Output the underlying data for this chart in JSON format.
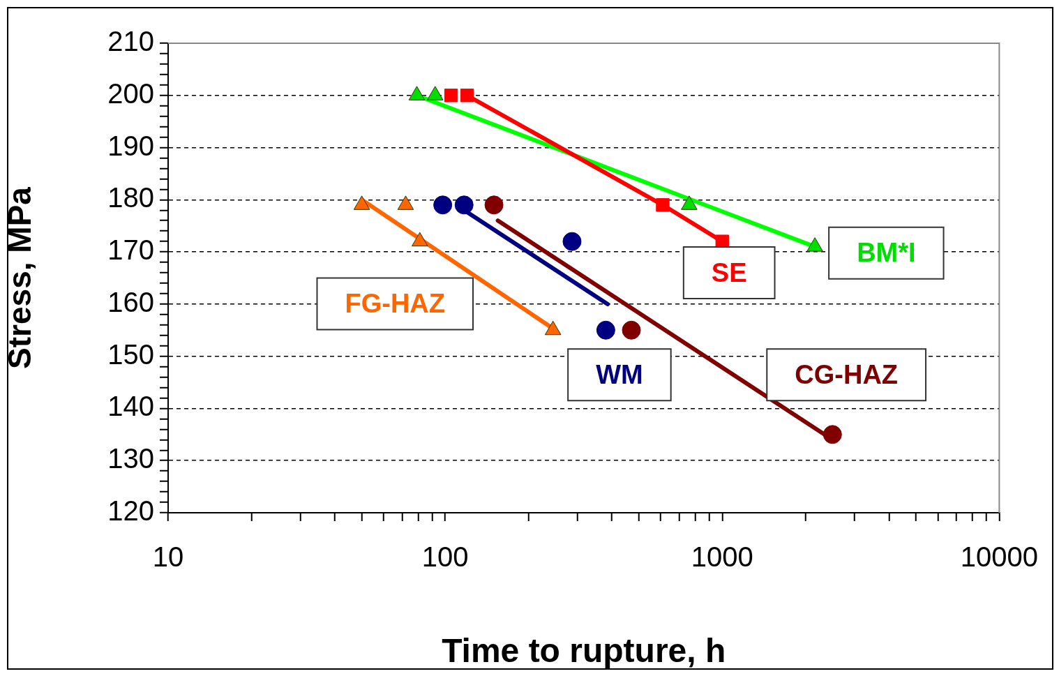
{
  "chart_data": {
    "type": "scatter",
    "xlabel": "Time to rupture, h",
    "ylabel": "Stress, MPa",
    "log": "x",
    "grid": "y",
    "legend": false,
    "xlim": [
      10,
      10000
    ],
    "ylim": [
      120,
      210
    ],
    "xticks": [
      10,
      {
        "value": 20,
        "label": null
      },
      {
        "value": 30,
        "label": null
      },
      {
        "value": 40,
        "label": null
      },
      {
        "value": 50,
        "label": null
      },
      {
        "value": 60,
        "label": null
      },
      {
        "value": 70,
        "label": null
      },
      {
        "value": 80,
        "label": null
      },
      {
        "value": 90,
        "label": null
      },
      100,
      {
        "value": 200,
        "label": null
      },
      {
        "value": 300,
        "label": null
      },
      {
        "value": 400,
        "label": null
      },
      {
        "value": 500,
        "label": null
      },
      {
        "value": 600,
        "label": null
      },
      {
        "value": 700,
        "label": null
      },
      {
        "value": 800,
        "label": null
      },
      {
        "value": 900,
        "label": null
      },
      1000,
      {
        "value": 2000,
        "label": null
      },
      {
        "value": 3000,
        "label": null
      },
      {
        "value": 4000,
        "label": null
      },
      {
        "value": 5000,
        "label": null
      },
      {
        "value": 6000,
        "label": null
      },
      {
        "value": 7000,
        "label": null
      },
      {
        "value": 8000,
        "label": null
      },
      {
        "value": 9000,
        "label": null
      },
      10000
    ],
    "yticks": [
      120,
      {
        "value": 122,
        "label": null
      },
      {
        "value": 124,
        "label": null
      },
      {
        "value": 126,
        "label": null
      },
      {
        "value": 128,
        "label": null
      },
      130,
      {
        "value": 132,
        "label": null
      },
      {
        "value": 134,
        "label": null
      },
      {
        "value": 136,
        "label": null
      },
      {
        "value": 138,
        "label": null
      },
      140,
      {
        "value": 142,
        "label": null
      },
      {
        "value": 144,
        "label": null
      },
      {
        "value": 146,
        "label": null
      },
      {
        "value": 148,
        "label": null
      },
      150,
      {
        "value": 152,
        "label": null
      },
      {
        "value": 154,
        "label": null
      },
      {
        "value": 156,
        "label": null
      },
      {
        "value": 158,
        "label": null
      },
      160,
      {
        "value": 162,
        "label": null
      },
      {
        "value": 164,
        "label": null
      },
      {
        "value": 166,
        "label": null
      },
      {
        "value": 168,
        "label": null
      },
      170,
      {
        "value": 172,
        "label": null
      },
      {
        "value": 174,
        "label": null
      },
      {
        "value": 176,
        "label": null
      },
      {
        "value": 178,
        "label": null
      },
      180,
      {
        "value": 182,
        "label": null
      },
      {
        "value": 184,
        "label": null
      },
      {
        "value": 186,
        "label": null
      },
      {
        "value": 188,
        "label": null
      },
      190,
      {
        "value": 192,
        "label": null
      },
      {
        "value": 194,
        "label": null
      },
      {
        "value": 196,
        "label": null
      },
      {
        "value": 198,
        "label": null
      },
      200,
      {
        "value": 202,
        "label": null
      },
      {
        "value": 204,
        "label": null
      },
      {
        "value": 206,
        "label": null
      },
      {
        "value": 208,
        "label": null
      },
      210
    ],
    "series": [
      {
        "name": "FG-HAZ",
        "color": "#ff6600",
        "marker": "triangle",
        "x": [
          50,
          72,
          81,
          245
        ],
        "values": [
          179,
          179,
          172,
          155
        ]
      },
      {
        "type": "line",
        "color": "#ff6600",
        "marker": "none",
        "x": [
          50,
          250
        ],
        "values": [
          180,
          155
        ]
      },
      {
        "name": "WM",
        "color": "#000080",
        "marker": "circle",
        "x": [
          98,
          117,
          287,
          380
        ],
        "values": [
          179,
          179,
          172,
          155
        ]
      },
      {
        "type": "line",
        "color": "#000080",
        "marker": "none",
        "x": [
          117,
          386
        ],
        "values": [
          178,
          160
        ]
      },
      {
        "name": "CG-HAZ",
        "color": "#800000",
        "marker": "circle",
        "x": [
          150,
          470,
          2500
        ],
        "values": [
          179,
          155,
          135
        ]
      },
      {
        "type": "line",
        "color": "#800000",
        "marker": "none",
        "x": [
          155,
          2500
        ],
        "values": [
          176,
          134
        ]
      },
      {
        "name": "SE",
        "color": "#ff0000",
        "marker": "square",
        "x": [
          105,
          120,
          610,
          1000
        ],
        "values": [
          200,
          200,
          179,
          172
        ]
      },
      {
        "type": "line",
        "color": "#ff0000",
        "marker": "none",
        "x": [
          120,
          610,
          1000
        ],
        "values": [
          200,
          179,
          172
        ]
      },
      {
        "name": "BM*I",
        "color": "#00dd00",
        "marker": "triangle",
        "x": [
          79,
          92,
          760,
          2160
        ],
        "values": [
          200,
          200,
          179,
          171
        ]
      },
      {
        "type": "line",
        "color": "#00ff00",
        "marker": "none",
        "x": [
          79,
          2160
        ],
        "values": [
          200,
          171
        ]
      }
    ]
  }
}
